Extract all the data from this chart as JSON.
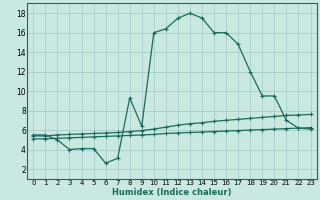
{
  "title": "",
  "xlabel": "Humidex (Indice chaleur)",
  "bg_color": "#c8e8e0",
  "grid_color": "#a0c8c8",
  "line_color": "#1a6b5a",
  "xlim": [
    -0.5,
    23.5
  ],
  "ylim": [
    1.0,
    19.0
  ],
  "yticks": [
    2,
    4,
    6,
    8,
    10,
    12,
    14,
    16,
    18
  ],
  "xticks": [
    0,
    1,
    2,
    3,
    4,
    5,
    6,
    7,
    8,
    9,
    10,
    11,
    12,
    13,
    14,
    15,
    16,
    17,
    18,
    19,
    20,
    21,
    22,
    23
  ],
  "curve1_x": [
    0,
    1,
    2,
    3,
    4,
    5,
    6,
    7,
    8,
    9,
    10,
    11,
    12,
    13,
    14,
    15,
    16,
    17,
    18,
    19,
    20,
    21,
    22,
    23
  ],
  "curve1_y": [
    5.5,
    5.5,
    5.0,
    4.0,
    4.1,
    4.1,
    2.6,
    3.1,
    9.3,
    6.4,
    16.0,
    16.4,
    17.5,
    18.0,
    17.5,
    16.0,
    16.0,
    14.8,
    12.0,
    9.5,
    9.5,
    7.0,
    6.2,
    6.1
  ],
  "curve2_x": [
    0,
    1,
    2,
    3,
    4,
    5,
    6,
    7,
    8,
    9,
    10,
    11,
    12,
    13,
    14,
    15,
    16,
    17,
    18,
    19,
    20,
    21,
    22,
    23
  ],
  "curve2_y": [
    5.4,
    5.4,
    5.5,
    5.55,
    5.6,
    5.65,
    5.7,
    5.75,
    5.85,
    5.95,
    6.1,
    6.3,
    6.5,
    6.65,
    6.75,
    6.9,
    7.0,
    7.1,
    7.2,
    7.3,
    7.4,
    7.5,
    7.55,
    7.6
  ],
  "curve3_x": [
    0,
    1,
    2,
    3,
    4,
    5,
    6,
    7,
    8,
    9,
    10,
    11,
    12,
    13,
    14,
    15,
    16,
    17,
    18,
    19,
    20,
    21,
    22,
    23
  ],
  "curve3_y": [
    5.1,
    5.1,
    5.15,
    5.2,
    5.25,
    5.3,
    5.35,
    5.4,
    5.45,
    5.5,
    5.55,
    5.65,
    5.7,
    5.75,
    5.8,
    5.85,
    5.9,
    5.95,
    6.0,
    6.05,
    6.1,
    6.15,
    6.2,
    6.25
  ]
}
